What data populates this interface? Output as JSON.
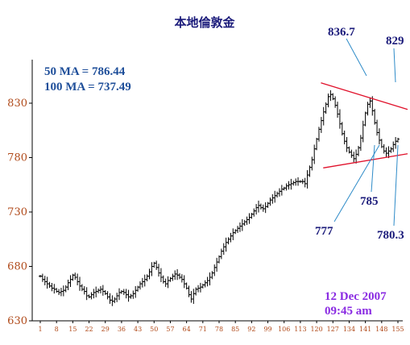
{
  "chart_data": {
    "type": "bar",
    "style": "ohlc",
    "title": "本地倫敦金",
    "ylim": [
      630,
      870
    ],
    "yticks": [
      630,
      680,
      730,
      780,
      830
    ],
    "xticks": [
      "1",
      "8",
      "15",
      "22",
      "29",
      "36",
      "43",
      "50",
      "57",
      "64",
      "71",
      "78",
      "85",
      "92",
      "99",
      "106",
      "113",
      "120",
      "127",
      "134",
      "141",
      "148",
      "155"
    ],
    "x_count": 155,
    "moving_averages": [
      {
        "label": "50 MA = 786.44"
      },
      {
        "label": "100 MA = 737.49"
      }
    ],
    "annotations": [
      {
        "text": "836.7",
        "x": 139,
        "y": 836.7
      },
      {
        "text": "829",
        "x": 151,
        "y": 829
      },
      {
        "text": "777",
        "x": 134,
        "y": 777
      },
      {
        "text": "785",
        "x": 144,
        "y": 785
      },
      {
        "text": "780.3",
        "x": 151,
        "y": 780.3
      }
    ],
    "trendlines": [
      {
        "name": "resistance",
        "start": [
          126,
          846
        ],
        "end": [
          155,
          827
        ]
      },
      {
        "name": "support",
        "start": [
          127,
          772
        ],
        "end": [
          155,
          782
        ]
      }
    ],
    "timestamp": {
      "date": "12 Dec 2007",
      "time": "09:45 am"
    },
    "close": [
      671,
      668,
      666,
      664,
      662,
      660,
      659,
      657,
      656,
      657,
      658,
      661,
      665,
      668,
      672,
      670,
      666,
      662,
      659,
      657,
      653,
      652,
      654,
      656,
      657,
      658,
      659,
      657,
      655,
      652,
      649,
      648,
      650,
      653,
      656,
      657,
      656,
      654,
      652,
      653,
      655,
      658,
      661,
      664,
      666,
      668,
      671,
      675,
      680,
      683,
      679,
      674,
      670,
      666,
      664,
      667,
      669,
      671,
      673,
      672,
      670,
      668,
      664,
      660,
      654,
      650,
      655,
      659,
      660,
      661,
      663,
      665,
      667,
      670,
      674,
      679,
      684,
      689,
      694,
      698,
      702,
      705,
      708,
      711,
      713,
      715,
      717,
      719,
      721,
      723,
      725,
      728,
      731,
      734,
      736,
      734,
      733,
      735,
      738,
      741,
      743,
      745,
      747,
      749,
      751,
      752,
      754,
      755,
      756,
      757,
      758,
      758,
      758,
      758,
      756,
      764,
      771,
      778,
      788,
      797,
      806,
      814,
      822,
      829,
      836,
      838,
      834,
      828,
      820,
      811,
      802,
      795,
      789,
      785,
      782,
      779,
      783,
      789,
      798,
      810,
      821,
      829,
      832,
      823,
      812,
      803,
      796,
      790,
      786,
      784,
      786,
      788,
      792,
      795,
      797
    ]
  }
}
